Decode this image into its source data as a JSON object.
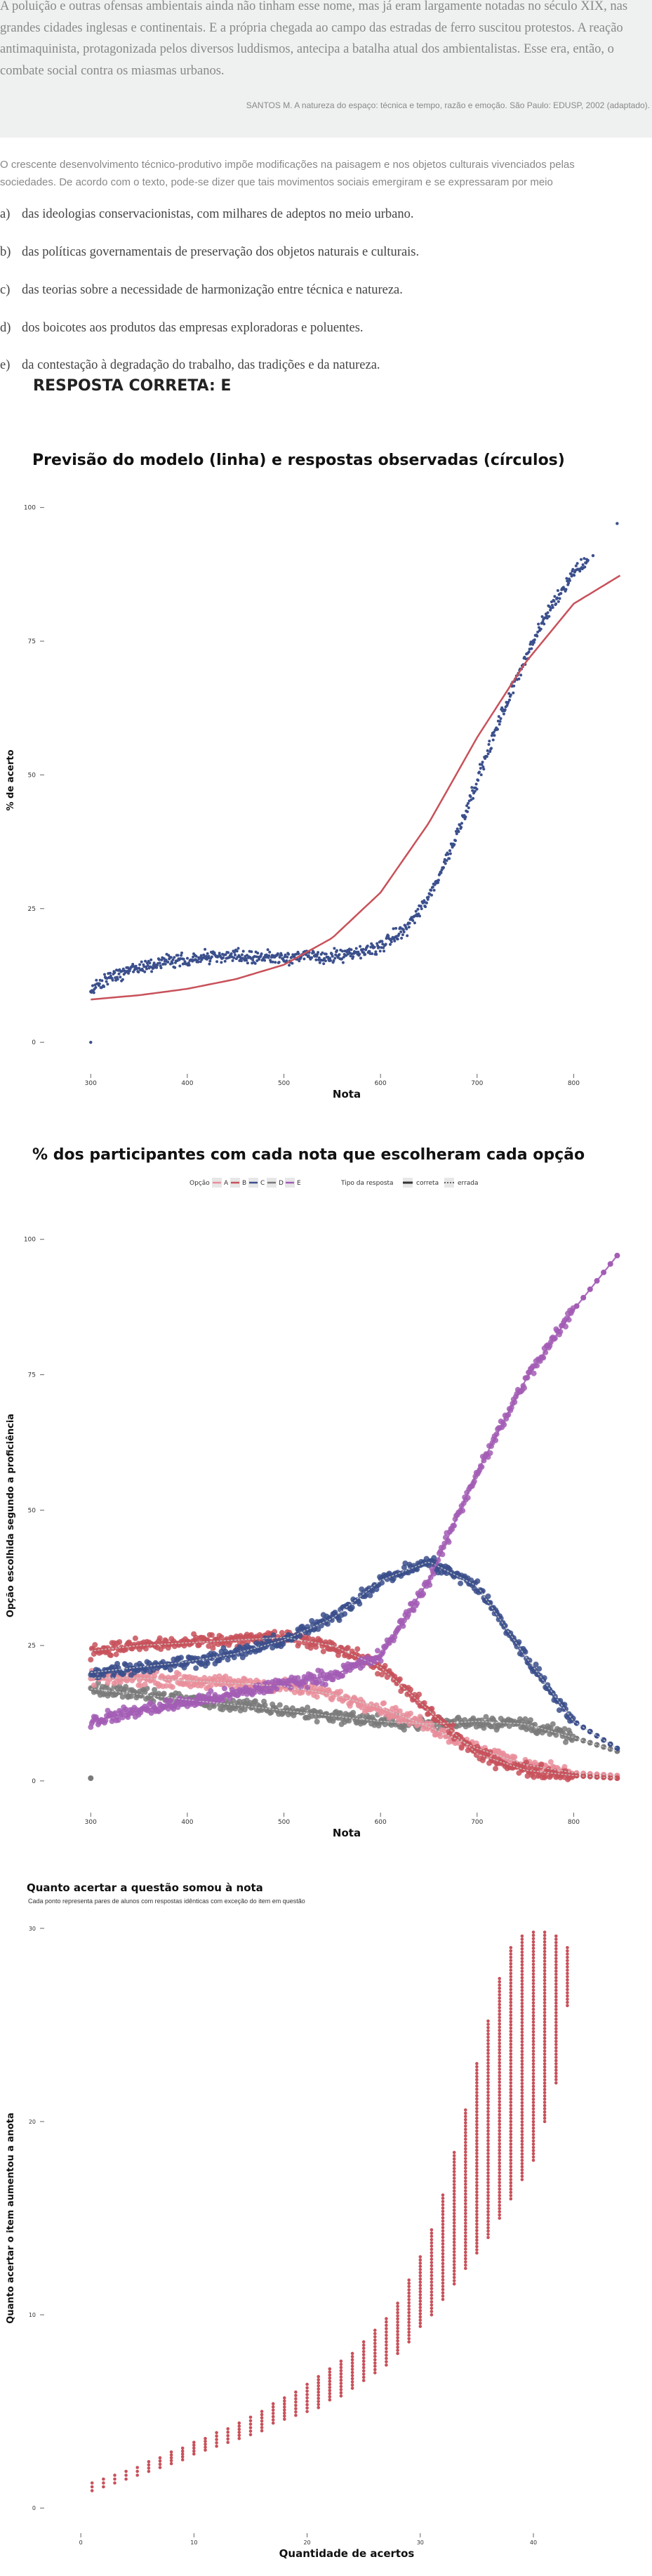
{
  "quote": {
    "text": "A poluição e outras ofensas ambientais ainda não tinham esse nome, mas já eram largamente notadas no século XIX, nas grandes cidades inglesas e continentais. E a própria chegada ao campo das estradas de ferro suscitou protestos. A reação antimaquinista, protagonizada pelos diversos luddismos, antecipa a batalha atual dos ambientalistas. Esse era, então, o combate social contra os miasmas urbanos.",
    "source": "SANTOS M. A natureza do espaço: técnica e tempo, razão e emoção. São Paulo: EDUSP, 2002 (adaptado)."
  },
  "question": {
    "text": "O crescente desenvolvimento técnico-produtivo impõe modificações na paisagem e nos objetos culturais vivenciados pelas sociedades. De acordo com o texto, pode-se dizer que tais movimentos sociais emergiram e se expressaram por meio",
    "options": [
      {
        "letter": "a)",
        "text": "das ideologias conservacionistas, com milhares de adeptos no meio urbano."
      },
      {
        "letter": "b)",
        "text": "das políticas governamentais de preservação dos objetos naturais e culturais."
      },
      {
        "letter": "c)",
        "text": "das teorias sobre a necessidade de harmonização entre técnica e natureza."
      },
      {
        "letter": "d)",
        "text": "dos boicotes aos produtos das empresas exploradoras e poluentes."
      },
      {
        "letter": "e)",
        "text": "da contestação à degradação do trabalho, das tradições e da natureza."
      }
    ],
    "answer": "RESPOSTA CORRETA: E"
  },
  "chart_data": [
    {
      "type": "scatter",
      "title": "Previsão do modelo (linha) e respostas observadas (círculos)",
      "xlabel": "Nota",
      "ylabel": "% de acerto",
      "xticks": [
        300,
        400,
        500,
        600,
        700,
        800
      ],
      "yticks": [
        0,
        25,
        50,
        75,
        100
      ],
      "xlim": [
        278,
        852
      ],
      "ylim": [
        -3,
        101
      ],
      "colors": {
        "observed": "#3b4f8c",
        "model": "#c8515a"
      },
      "series": [
        {
          "kind": "line",
          "x": [
            300,
            350,
            400,
            450,
            500,
            550,
            600,
            650,
            700,
            750,
            800,
            850
          ],
          "y": [
            8,
            8.8,
            10,
            11.8,
            14.5,
            19.5,
            28,
            41,
            57,
            71,
            82,
            87.5
          ]
        },
        {
          "kind": "points",
          "x": [
            300,
            310,
            325,
            350,
            375,
            400,
            425,
            450,
            475,
            500,
            525,
            550,
            575,
            600,
            625,
            650,
            675,
            700,
            725,
            750,
            775,
            800,
            820,
            845
          ],
          "y": [
            9.5,
            11,
            12.5,
            14,
            15,
            15.5,
            16,
            16,
            16,
            16,
            16,
            16,
            16.5,
            18,
            21,
            27,
            37,
            49,
            61,
            72,
            81,
            88,
            91,
            97
          ]
        }
      ]
    },
    {
      "type": "line",
      "title": "% dos participantes com cada nota que escolheram cada opção",
      "xlabel": "Nota",
      "ylabel": "Opção escolhida segundo a proficiência",
      "xticks": [
        300,
        400,
        500,
        600,
        700,
        800
      ],
      "yticks": [
        0,
        25,
        50,
        75,
        100
      ],
      "xlim": [
        278,
        852
      ],
      "ylim": [
        -3,
        101
      ],
      "legend": {
        "option_title": "Opção",
        "options": [
          "A",
          "B",
          "C",
          "D",
          "E"
        ],
        "type_title": "Tipo da resposta",
        "types": [
          "correta",
          "errada"
        ],
        "placement": "top-center"
      },
      "x": [
        300,
        350,
        400,
        450,
        500,
        550,
        600,
        650,
        700,
        750,
        800,
        845
      ],
      "series": [
        {
          "name": "A",
          "color": "#e98e9b",
          "values": [
            19,
            19,
            18.5,
            18,
            17.5,
            16,
            13.5,
            10,
            6,
            3,
            1.5,
            1
          ]
        },
        {
          "name": "B",
          "color": "#c8515a",
          "values": [
            24,
            25,
            25.5,
            26,
            26.5,
            25,
            21,
            13,
            5,
            2,
            1,
            0.5
          ]
        },
        {
          "name": "C",
          "color": "#3b4f8c",
          "values": [
            20,
            21,
            22,
            23.5,
            26,
            30,
            37,
            40.5,
            36,
            23,
            11,
            6
          ]
        },
        {
          "name": "D",
          "color": "#7a7a7a",
          "values": [
            17,
            16,
            15,
            14,
            13,
            12,
            11,
            10.5,
            11,
            10.5,
            8,
            5.5
          ]
        },
        {
          "name": "E",
          "color": "#a35db5",
          "values": [
            11,
            13,
            14.5,
            16,
            18,
            19.5,
            23,
            37,
            57,
            74,
            87,
            97
          ]
        }
      ]
    },
    {
      "type": "scatter",
      "title": "Quanto acertar a questão somou à nota",
      "subtitle": "Cada ponto representa pares de alunos com respostas idênticas com exceção do item em questão",
      "xlabel": "Quantidade de acertos",
      "ylabel": "Quanto acertar o item aumentou a anota",
      "xticks": [
        0,
        10,
        20,
        30,
        40
      ],
      "yticks": [
        0,
        10,
        20,
        30
      ],
      "xlim": [
        -1,
        48
      ],
      "ylim": [
        -0.5,
        30.5
      ],
      "color": "#c8515a",
      "x": [
        1,
        2,
        3,
        4,
        5,
        6,
        7,
        8,
        9,
        10,
        11,
        12,
        13,
        14,
        15,
        16,
        17,
        18,
        19,
        20,
        21,
        22,
        23,
        24,
        25,
        26,
        27,
        28,
        29,
        30,
        31,
        32,
        33,
        34,
        35,
        36,
        37,
        38,
        39,
        40,
        41,
        42,
        43
      ],
      "ymin": [
        0.9,
        1.1,
        1.3,
        1.5,
        1.7,
        1.9,
        2.1,
        2.3,
        2.5,
        2.8,
        3.0,
        3.2,
        3.4,
        3.6,
        3.8,
        4.0,
        4.4,
        4.6,
        4.8,
        5.0,
        5.2,
        5.6,
        5.8,
        6.2,
        6.6,
        7.0,
        7.4,
        8.0,
        8.6,
        9.4,
        10.0,
        10.8,
        11.6,
        12.4,
        13.2,
        14.0,
        15.0,
        16.0,
        17.0,
        18.0,
        20.0,
        22.0,
        26.0
      ],
      "ymax": [
        1.3,
        1.5,
        1.7,
        1.9,
        2.1,
        2.4,
        2.6,
        2.9,
        3.1,
        3.4,
        3.6,
        3.9,
        4.1,
        4.4,
        4.7,
        5.0,
        5.4,
        5.7,
        6.0,
        6.4,
        6.8,
        7.2,
        7.6,
        8.0,
        8.6,
        9.2,
        9.8,
        10.6,
        11.8,
        13.0,
        14.4,
        16.2,
        18.4,
        20.6,
        23.0,
        25.2,
        27.4,
        29.0,
        29.6,
        29.8,
        29.8,
        29.6,
        29.0
      ]
    }
  ]
}
